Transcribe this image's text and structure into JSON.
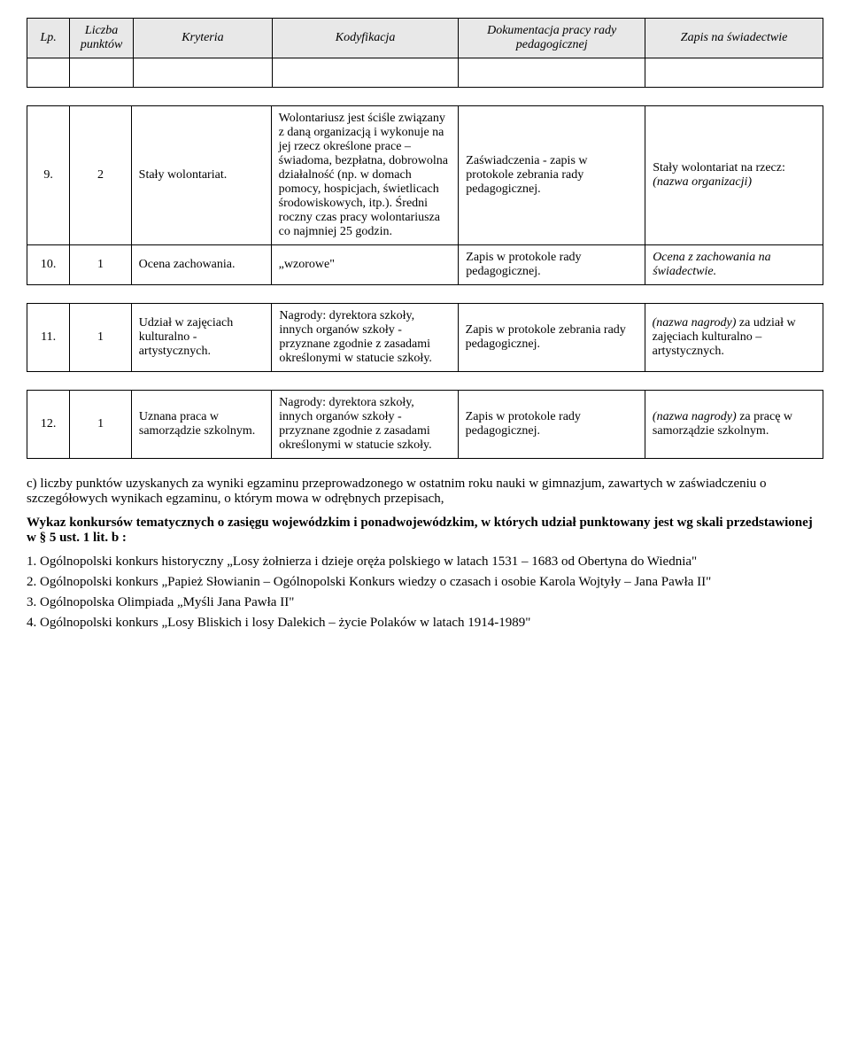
{
  "headers": {
    "lp": "Lp.",
    "punkty": "Liczba punktów",
    "kryteria": "Kryteria",
    "kodyfikacja": "Kodyfikacja",
    "dokumentacja": "Dokumentacja pracy rady pedagogicznej",
    "zapis": "Zapis na świadectwie"
  },
  "rows": [
    {
      "lp": "9.",
      "punkty": "2",
      "kryteria": "Stały wolontariat.",
      "kodyfikacja": "Wolontariusz jest ściśle związany z daną organizacją i wykonuje na jej rzecz określone prace – świadoma, bezpłatna, dobrowolna działalność (np. w domach pomocy, hospicjach, świetlicach środowiskowych, itp.). Średni roczny czas pracy wolontariusza co najmniej 25 godzin.",
      "dokumentacja": "Zaświadczenia - zapis w protokole zebrania rady pedagogicznej.",
      "zapis_pre": "Stały wolontariat na rzecz: ",
      "zapis_it": "(nazwa organizacji)"
    },
    {
      "lp": "10.",
      "punkty": "1",
      "kryteria": "Ocena zachowania.",
      "kodyfikacja": "„wzorowe\"",
      "dokumentacja": "Zapis w protokole rady pedagogicznej.",
      "zapis_pre": "",
      "zapis_it": "Ocena z  zachowania na świadectwie."
    },
    {
      "lp": "11.",
      "punkty": "1",
      "kryteria": "Udział w zajęciach kulturalno - artystycznych.",
      "kodyfikacja": "Nagrody: dyrektora szkoły, innych organów szkoły -przyznane zgodnie z zasadami określonymi w statucie szkoły.",
      "dokumentacja": "Zapis w protokole zebrania rady pedagogicznej.",
      "zapis_it": "(nazwa nagrody)",
      "zapis_post": " za udział w zajęciach kulturalno – artystycznych."
    },
    {
      "lp": "12.",
      "punkty": "1",
      "kryteria": "Uznana praca w samorządzie szkolnym.",
      "kodyfikacja": "Nagrody: dyrektora szkoły, innych organów szkoły - przyznane zgodnie z zasadami określonymi w statucie szkoły.",
      "dokumentacja": "Zapis w protokole  rady pedagogicznej.",
      "zapis_it": "(nazwa nagrody)",
      "zapis_post": " za pracę w samorządzie szkolnym."
    }
  ],
  "para_c": "c) liczby punktów uzyskanych za wyniki egzaminu przeprowadzonego w ostatnim roku nauki w gimnazjum, zawartych w zaświadczeniu o szczegółowych wynikach egzaminu, o którym mowa w odrębnych przepisach,",
  "wykaz1": "Wykaz konkursów tematycznych o zasięgu wojewódzkim i ponadwojewódzkim, w których udział punktowany jest wg skali przedstawionej w § 5 ust. 1 lit. b :",
  "list": [
    "1. Ogólnopolski konkurs historyczny „Losy żołnierza i dzieje oręża polskiego w latach 1531 – 1683 od Obertyna do Wiednia\"",
    "2. Ogólnopolski konkurs „Papież Słowianin – Ogólnopolski Konkurs wiedzy o czasach i osobie Karola Wojtyły – Jana Pawła II\"",
    "3. Ogólnopolska Olimpiada „Myśli Jana Pawła II\"",
    "4. Ogólnopolski konkurs „Losy Bliskich i losy Dalekich – życie Polaków w latach 1914-1989\""
  ]
}
